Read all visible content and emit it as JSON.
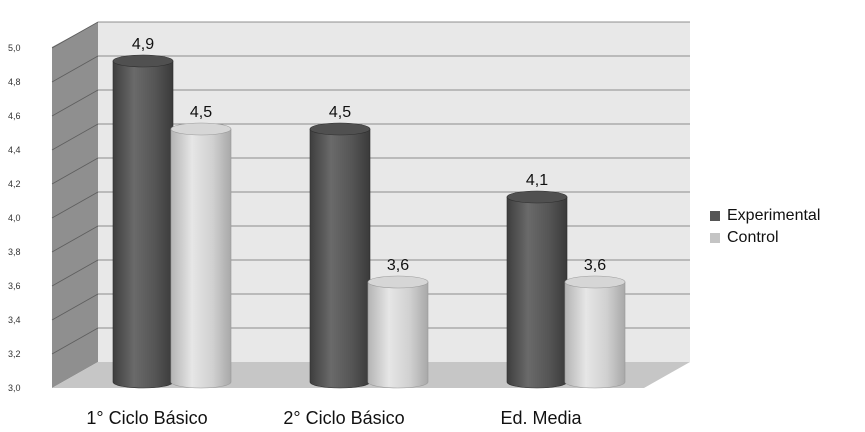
{
  "chart_data": {
    "type": "bar",
    "categories": [
      "1° Ciclo Básico",
      "2° Ciclo Básico",
      "Ed. Media"
    ],
    "series": [
      {
        "name": "Experimental",
        "values": [
          4.9,
          4.5,
          4.1
        ],
        "labels": [
          "4,9",
          "4,5",
          "4,1"
        ],
        "color": "#5a5a5a"
      },
      {
        "name": "Control",
        "values": [
          4.5,
          3.6,
          3.6
        ],
        "labels": [
          "4,5",
          "3,6",
          "3,6"
        ],
        "color": "#c8c8c8"
      }
    ],
    "ylim": [
      3.0,
      5.0
    ],
    "yticks": [
      "3,0",
      "3,2",
      "3,4",
      "3,6",
      "3,8",
      "4,0",
      "4,2",
      "4,4",
      "4,6",
      "4,8",
      "5,0"
    ],
    "title": "",
    "xlabel": "",
    "ylabel": "",
    "grid": true,
    "legend_position": "right"
  }
}
